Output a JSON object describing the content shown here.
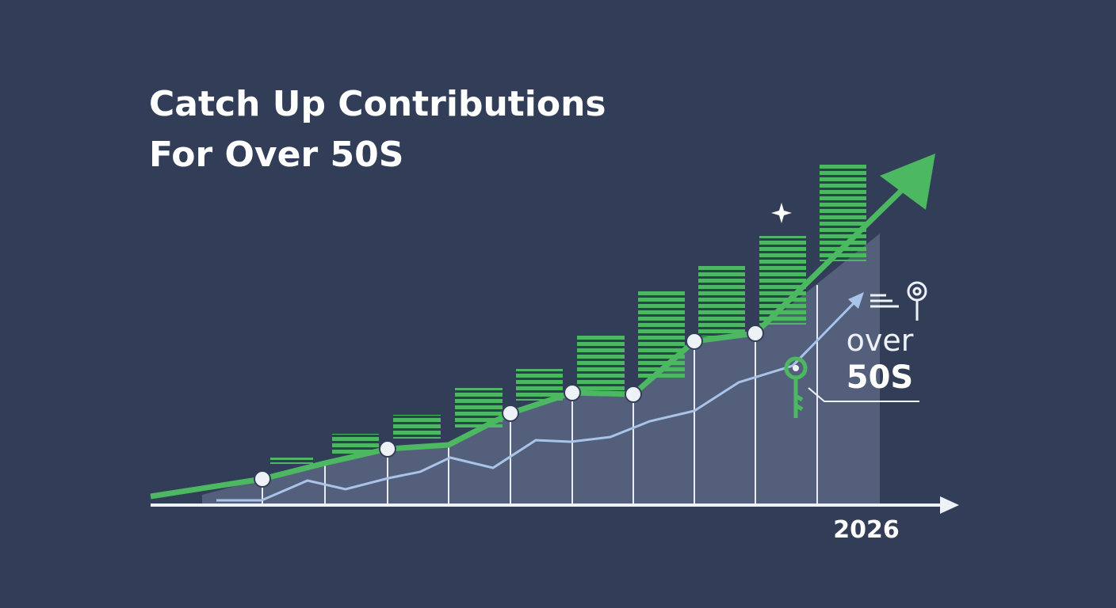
{
  "title": {
    "line1": "Catch Up Contributions",
    "line2": "For Over 50S"
  },
  "annotation": {
    "line1": "over",
    "line2": "50S"
  },
  "axis_label": "2026"
}
